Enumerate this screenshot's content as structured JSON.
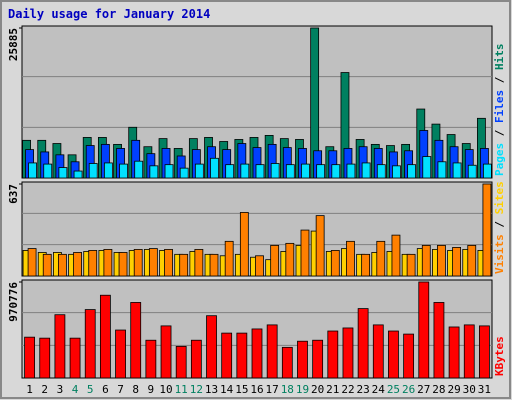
{
  "chart_data": [
    {
      "type": "bar",
      "title": "Daily usage for January 2014",
      "ylim": [
        0,
        25885
      ],
      "yticks": [
        25885
      ],
      "legend_separator": " / ",
      "series": [
        {
          "name": "Hits",
          "color": "#008060",
          "values": [
            6500,
            6500,
            5950,
            4000,
            7000,
            7000,
            5800,
            8750,
            5400,
            6800,
            5100,
            6800,
            7000,
            6300,
            6650,
            7000,
            7350,
            6800,
            6650,
            25885,
            5400,
            18200,
            6650,
            5800,
            5600,
            5800,
            11900,
            9300,
            7500,
            5950,
            10300
          ]
        },
        {
          "name": "Files",
          "color": "#0040ff",
          "values": [
            4900,
            4500,
            4000,
            2800,
            5600,
            5800,
            5100,
            6500,
            4200,
            5100,
            3800,
            4900,
            5400,
            4900,
            5950,
            5250,
            5800,
            5250,
            5100,
            4700,
            4700,
            5100,
            5400,
            5100,
            4500,
            4700,
            8200,
            6500,
            5400,
            4900,
            5100
          ]
        },
        {
          "name": "Pages",
          "color": "#00e0ff",
          "values": [
            2600,
            2400,
            1800,
            1200,
            2500,
            2600,
            2400,
            2900,
            2100,
            2300,
            1700,
            2400,
            3400,
            2300,
            2400,
            2300,
            2500,
            2300,
            2400,
            2300,
            2300,
            2400,
            2600,
            2300,
            2100,
            2300,
            3700,
            2800,
            2600,
            2200,
            2400
          ]
        }
      ]
    },
    {
      "type": "bar",
      "ylim": [
        0,
        637
      ],
      "yticks": [
        637
      ],
      "legend_separator": " / ",
      "series": [
        {
          "name": "Sites",
          "color": "#ffd000",
          "values": [
            177,
            163,
            163,
            150,
            170,
            177,
            163,
            177,
            184,
            177,
            150,
            170,
            150,
            140,
            150,
            130,
            113,
            170,
            212,
            311,
            170,
            190,
            150,
            163,
            170,
            150,
            190,
            184,
            177,
            184,
            177
          ]
        },
        {
          "name": "Visits",
          "color": "#ff8000",
          "values": [
            190,
            150,
            150,
            163,
            177,
            184,
            163,
            184,
            190,
            184,
            150,
            184,
            150,
            240,
            440,
            140,
            212,
            226,
            318,
            418,
            177,
            240,
            150,
            240,
            283,
            150,
            212,
            212,
            198,
            212,
            637
          ]
        }
      ]
    },
    {
      "type": "bar",
      "ylim": [
        0,
        970776
      ],
      "yticks": [
        970776
      ],
      "categories": [
        "1",
        "2",
        "3",
        "4",
        "5",
        "6",
        "7",
        "8",
        "9",
        "10",
        "11",
        "12",
        "13",
        "14",
        "15",
        "16",
        "17",
        "18",
        "19",
        "20",
        "21",
        "22",
        "23",
        "24",
        "25",
        "26",
        "27",
        "28",
        "29",
        "30",
        "31"
      ],
      "label_colors": [
        "#000000",
        "#000000",
        "#000000",
        "#008060",
        "#008060",
        "#000000",
        "#000000",
        "#000000",
        "#000000",
        "#000000",
        "#008060",
        "#008060",
        "#000000",
        "#000000",
        "#000000",
        "#000000",
        "#000000",
        "#008060",
        "#008060",
        "#000000",
        "#000000",
        "#000000",
        "#000000",
        "#000000",
        "#008060",
        "#008060",
        "#000000",
        "#000000",
        "#000000",
        "#000000",
        "#000000"
      ],
      "series": [
        {
          "name": "KBytes",
          "color": "#ff0000",
          "values": [
            413000,
            403000,
            640000,
            403000,
            692000,
            837000,
            485000,
            764000,
            382000,
            527000,
            320000,
            382000,
            630000,
            454000,
            454000,
            496000,
            537000,
            310000,
            372000,
            382000,
            475000,
            506000,
            702000,
            537000,
            475000,
            444000,
            970776,
            764000,
            516000,
            537000,
            527000
          ]
        }
      ]
    }
  ]
}
